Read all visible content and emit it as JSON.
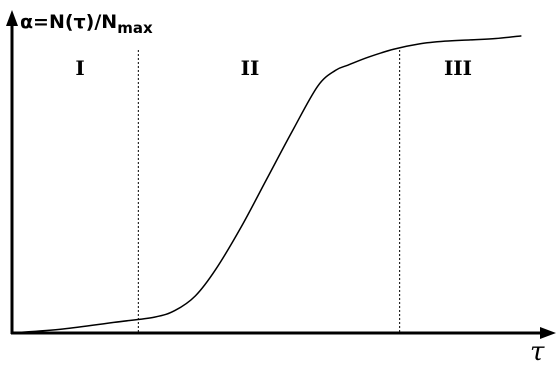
{
  "chart_data": {
    "type": "line",
    "title": "",
    "ylabel_main": "α=N(τ)/N",
    "ylabel_sub": "max",
    "xlabel": "τ",
    "regions": [
      {
        "label": "I",
        "x_start": 0,
        "x_end": 0.248
      },
      {
        "label": "II",
        "x_start": 0.248,
        "x_end": 0.761
      },
      {
        "label": "III",
        "x_start": 0.761,
        "x_end": 1
      }
    ],
    "boundaries": [
      0.248,
      0.761
    ],
    "xlim": [
      0,
      1.064
    ],
    "ylim": [
      0,
      1.21
    ],
    "grid": false,
    "series": [
      {
        "x": [
          0,
          0.1,
          0.2,
          0.28,
          0.32,
          0.36,
          0.4,
          0.45,
          0.5,
          0.55,
          0.6,
          0.635,
          0.66,
          0.7,
          0.75,
          0.8,
          0.85,
          0.9,
          0.95,
          1.0
        ],
        "y": [
          0,
          0.015,
          0.04,
          0.06,
          0.085,
          0.14,
          0.24,
          0.4,
          0.58,
          0.76,
          0.93,
          0.99,
          1.01,
          1.04,
          1.07,
          1.09,
          1.1,
          1.105,
          1.11,
          1.12
        ]
      }
    ]
  }
}
